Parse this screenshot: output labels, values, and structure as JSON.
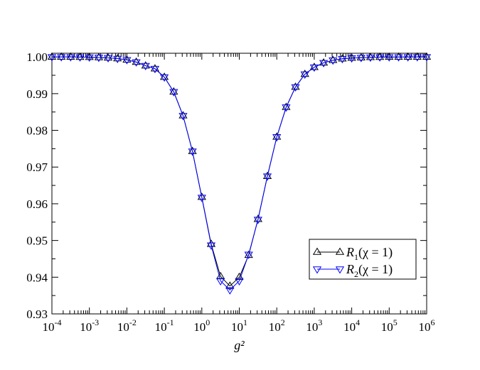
{
  "chart_data": {
    "type": "line",
    "title": "",
    "xlabel": "g²",
    "ylabel": "",
    "xscale": "log",
    "xlim": [
      0.0001,
      1000000
    ],
    "ylim": [
      0.93,
      1.001
    ],
    "x_tick_labels": [
      {
        "base": "10",
        "exp": "-4",
        "value": 0.0001
      },
      {
        "base": "10",
        "exp": "-3",
        "value": 0.001
      },
      {
        "base": "10",
        "exp": "-2",
        "value": 0.01
      },
      {
        "base": "10",
        "exp": "-1",
        "value": 0.1
      },
      {
        "base": "10",
        "exp": "0",
        "value": 1
      },
      {
        "base": "10",
        "exp": "1",
        "value": 10
      },
      {
        "base": "10",
        "exp": "2",
        "value": 100
      },
      {
        "base": "10",
        "exp": "3",
        "value": 1000
      },
      {
        "base": "10",
        "exp": "4",
        "value": 10000
      },
      {
        "base": "10",
        "exp": "5",
        "value": 100000
      },
      {
        "base": "10",
        "exp": "6",
        "value": 1000000
      }
    ],
    "y_ticks": [
      0.93,
      0.94,
      0.95,
      0.96,
      0.97,
      0.98,
      0.99,
      1.0
    ],
    "y_tick_labels": [
      "0.93",
      "0.94",
      "0.95",
      "0.96",
      "0.97",
      "0.98",
      "0.99",
      "1.00"
    ],
    "grid": false,
    "legend_position": "bottom-right",
    "x": [
      0.0001,
      0.000178,
      0.000316,
      0.000562,
      0.001,
      0.00178,
      0.00316,
      0.00562,
      0.01,
      0.0178,
      0.0316,
      0.0562,
      0.1,
      0.178,
      0.316,
      0.562,
      1,
      1.78,
      3.16,
      5.62,
      10,
      17.8,
      31.6,
      56.2,
      100,
      178,
      316,
      562,
      1000,
      1780,
      3160,
      5620,
      10000,
      17800,
      31600,
      56200,
      100000,
      178000,
      316000,
      562000,
      1000000
    ],
    "series": [
      {
        "name": "R1(χ = 1)",
        "name_parts": {
          "letter": "R",
          "sub": "1",
          "arg": "(χ = 1)"
        },
        "color": "#000000",
        "marker": "triangle-up",
        "values": [
          1.0,
          1.0,
          1.0,
          0.99995,
          0.99992,
          0.99985,
          0.99975,
          0.99955,
          0.9992,
          0.9986,
          0.9976,
          0.9968,
          0.9945,
          0.9905,
          0.984,
          0.9743,
          0.9618,
          0.949,
          0.9402,
          0.9376,
          0.94,
          0.946,
          0.9558,
          0.9675,
          0.9782,
          0.9863,
          0.9918,
          0.9953,
          0.9972,
          0.9984,
          0.9991,
          0.9995,
          0.9997,
          0.9998,
          0.9999,
          0.99995,
          0.99997,
          0.99998,
          0.99999,
          1.0,
          1.0
        ]
      },
      {
        "name": "R2(χ = 1)",
        "name_parts": {
          "letter": "R",
          "sub": "2",
          "arg": "(χ = 1)"
        },
        "color": "#0000ff",
        "marker": "triangle-down",
        "values": [
          1.0,
          1.0,
          1.0,
          0.99995,
          0.99992,
          0.99985,
          0.99975,
          0.99955,
          0.9992,
          0.9986,
          0.9976,
          0.9968,
          0.9945,
          0.9905,
          0.984,
          0.9743,
          0.9617,
          0.9487,
          0.939,
          0.9365,
          0.939,
          0.9462,
          0.9557,
          0.9675,
          0.9782,
          0.9863,
          0.9918,
          0.9953,
          0.9972,
          0.9984,
          0.9991,
          0.9995,
          0.9997,
          0.9998,
          0.9999,
          0.99995,
          0.99997,
          0.99998,
          0.99999,
          1.0,
          1.0
        ]
      }
    ]
  }
}
